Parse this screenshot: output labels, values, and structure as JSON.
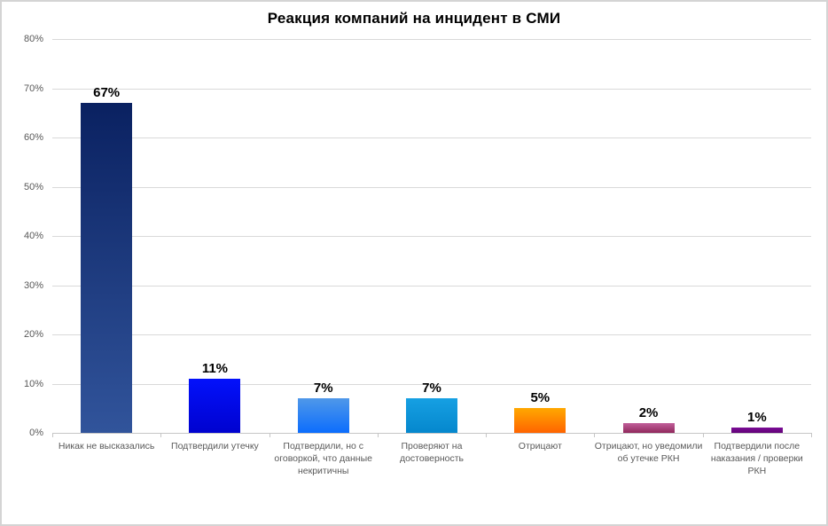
{
  "chart_data": {
    "type": "bar",
    "title": "Реакция компаний на инцидент в СМИ",
    "categories": [
      "Никак не высказались",
      "Подтвердили утечку",
      "Подтвердили, но с оговоркой, что данные некритичны",
      "Проверяют на достоверность",
      "Отрицают",
      "Отрицают, но уведомили об утечке РКН",
      "Подтвердили после наказания / проверки РКН"
    ],
    "values": [
      67,
      11,
      7,
      7,
      5,
      2,
      1
    ],
    "value_labels": [
      "67%",
      "11%",
      "7%",
      "7%",
      "5%",
      "2%",
      "1%"
    ],
    "xlabel": "",
    "ylabel": "",
    "ylim": [
      0,
      80
    ],
    "ytick_labels": [
      "0%",
      "10%",
      "20%",
      "30%",
      "40%",
      "50%",
      "60%",
      "70%",
      "80%"
    ],
    "grid": true,
    "legend": false,
    "bar_gradients": [
      {
        "top": "#0a2161",
        "bottom": "#31549b"
      },
      {
        "top": "#0311fb",
        "bottom": "#0002cf"
      },
      {
        "top": "#4f98e9",
        "bottom": "#0c6dfd"
      },
      {
        "top": "#16a0e3",
        "bottom": "#0587cd"
      },
      {
        "top": "#ffa800",
        "bottom": "#ff6400"
      },
      {
        "top": "#c2609b",
        "bottom": "#90285c"
      },
      {
        "top": "#7c0d97",
        "bottom": "#610277"
      }
    ],
    "colors": {
      "title": "#000000",
      "axis_labels": "#595959",
      "value_labels": "#000000",
      "gridline": "#d9d9d9",
      "axis_line": "#c6c6c6",
      "background": "#ffffff",
      "frame_border": "#d4d4d4"
    }
  }
}
